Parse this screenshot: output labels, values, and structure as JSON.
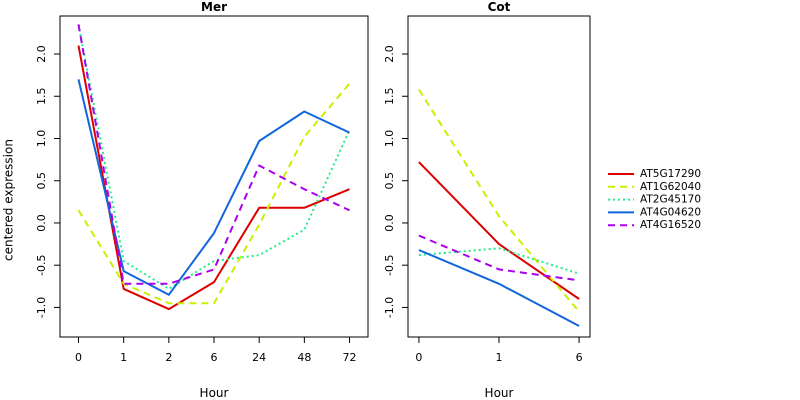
{
  "chart_data": {
    "ylabel": "centered expression",
    "panels": [
      {
        "type": "line",
        "title": "Mer",
        "xlabel": "Hour",
        "categories": [
          "0",
          "1",
          "2",
          "6",
          "24",
          "48",
          "72"
        ],
        "ylim": [
          -1.35,
          2.45
        ],
        "yticks": [
          "-1.0",
          "-0.5",
          "0.0",
          "0.5",
          "1.0",
          "1.5",
          "2.0"
        ],
        "series": [
          {
            "name": "AT5G17290",
            "values": [
              2.1,
              -0.78,
              -1.02,
              -0.7,
              0.18,
              0.18,
              0.4
            ]
          },
          {
            "name": "AT1G62040",
            "values": [
              0.15,
              -0.72,
              -0.95,
              -0.95,
              -0.02,
              1.02,
              1.65
            ]
          },
          {
            "name": "AT2G45170",
            "values": [
              2.35,
              -0.45,
              -0.78,
              -0.45,
              -0.38,
              -0.08,
              1.1
            ]
          },
          {
            "name": "AT4G04620",
            "values": [
              1.7,
              -0.57,
              -0.85,
              -0.12,
              0.97,
              1.32,
              1.07
            ]
          },
          {
            "name": "AT4G16520",
            "values": [
              2.35,
              -0.72,
              -0.72,
              -0.55,
              0.68,
              0.4,
              0.15
            ]
          }
        ]
      },
      {
        "type": "line",
        "title": "Cot",
        "xlabel": "Hour",
        "categories": [
          "0",
          "1",
          "6"
        ],
        "ylim": [
          -1.35,
          2.45
        ],
        "yticks": [
          "-1.0",
          "-0.5",
          "0.0",
          "0.5",
          "1.0",
          "1.5",
          "2.0"
        ],
        "series": [
          {
            "name": "AT5G17290",
            "values": [
              0.72,
              -0.25,
              -0.9
            ]
          },
          {
            "name": "AT1G62040",
            "values": [
              1.58,
              0.08,
              -1.05
            ]
          },
          {
            "name": "AT2G45170",
            "values": [
              -0.38,
              -0.3,
              -0.6
            ]
          },
          {
            "name": "AT4G04620",
            "values": [
              -0.32,
              -0.72,
              -1.22
            ]
          },
          {
            "name": "AT4G16520",
            "values": [
              -0.15,
              -0.55,
              -0.68
            ]
          }
        ]
      }
    ],
    "legend": {
      "placement": "right",
      "entries": [
        {
          "name": "AT5G17290",
          "color": "#dd0000",
          "dash": "solid"
        },
        {
          "name": "AT1G62040",
          "color": "#ccee00",
          "dash": "dashed"
        },
        {
          "name": "AT2G45170",
          "color": "#22ee88",
          "dash": "dotted"
        },
        {
          "name": "AT4G04620",
          "color": "#1166dd",
          "dash": "solid"
        },
        {
          "name": "AT4G16520",
          "color": "#aa00ee",
          "dash": "dashed"
        }
      ]
    }
  }
}
